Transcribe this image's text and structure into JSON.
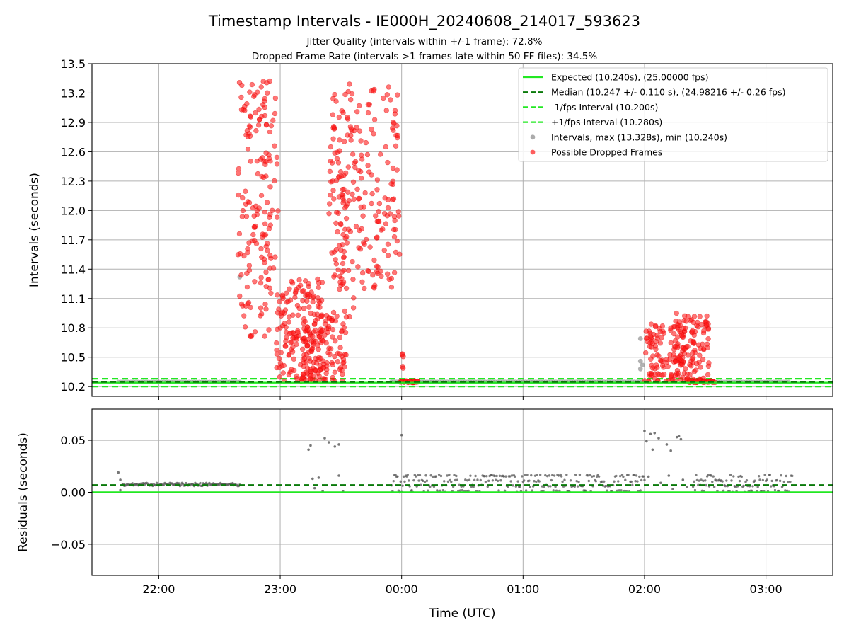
{
  "figure": {
    "title": "Timestamp Intervals - IE000H_20240608_214017_593623",
    "subtitle_1": "Jitter Quality (intervals within +/-1 frame): 72.8%",
    "subtitle_2": "Dropped Frame Rate (intervals >1 frames late within 50 FF files): 34.5%"
  },
  "colors": {
    "expected": "#22e822",
    "median": "#0a7a0a",
    "interval_band": "#22e822",
    "intervals": "#888888",
    "dropped": "#ff1a1a",
    "residuals": "#555555",
    "grid": "#b0b0b0"
  },
  "chart_data": [
    {
      "type": "scatter",
      "xlabel": "",
      "ylabel": "Intervals (seconds)",
      "xlim": [
        "21:27",
        "03:33"
      ],
      "ylim": [
        10.1,
        13.5
      ],
      "y_ticks": [
        "10.2",
        "10.5",
        "10.8",
        "11.1",
        "11.4",
        "11.7",
        "12.0",
        "12.3",
        "12.6",
        "12.9",
        "13.2",
        "13.5"
      ],
      "x_ticks": [
        "22:00",
        "23:00",
        "00:00",
        "01:00",
        "02:00",
        "03:00"
      ],
      "grid": true,
      "legend_position": "top-right",
      "reference_lines": [
        {
          "name": "Expected (10.240s), (25.00000 fps)",
          "y": 10.24,
          "style": "solid"
        },
        {
          "name": "Median (10.247 +/- 0.110 s), (24.98216 +/- 0.26 fps)",
          "y": 10.247,
          "style": "dashed"
        },
        {
          "name": "-1/fps Interval (10.200s)",
          "y": 10.2,
          "style": "dashed"
        },
        {
          "name": "+1/fps Interval (10.280s)",
          "y": 10.28,
          "style": "dashed"
        }
      ],
      "series": [
        {
          "name": "Intervals, max (13.328s), min (10.240s)",
          "max": 13.328,
          "min": 10.24,
          "baseline_ranges": [
            {
              "start": "21:40",
              "end": "22:40",
              "y": 10.247
            },
            {
              "start": "23:55",
              "end": "02:00",
              "y": 10.249
            },
            {
              "start": "02:35",
              "end": "03:12",
              "y": 10.247
            }
          ],
          "points": [
            {
              "x": "22:40",
              "y": 11.32
            },
            {
              "x": "01:58",
              "y": 10.69
            },
            {
              "x": "01:58",
              "y": 10.46
            },
            {
              "x": "01:58",
              "y": 10.38
            },
            {
              "x": "01:59",
              "y": 10.42
            }
          ]
        },
        {
          "name": "Possible Dropped Frames",
          "clusters": [
            {
              "start": "22:39",
              "end": "22:59",
              "ymin": 10.7,
              "ymax": 13.33,
              "count": 160
            },
            {
              "start": "22:58",
              "end": "23:21",
              "ymin": 10.25,
              "ymax": 11.3,
              "count": 170
            },
            {
              "start": "23:11",
              "end": "23:33",
              "ymin": 10.25,
              "ymax": 10.95,
              "count": 110
            },
            {
              "start": "23:24",
              "end": "23:37",
              "ymin": 10.8,
              "ymax": 12.9,
              "count": 55
            },
            {
              "start": "23:25",
              "end": "23:59",
              "ymin": 11.2,
              "ymax": 13.3,
              "count": 190
            },
            {
              "start": "23:59",
              "end": "00:08",
              "ymin": 10.24,
              "ymax": 10.26,
              "count": 45
            },
            {
              "start": "00:00",
              "end": "00:01",
              "ymin": 10.3,
              "ymax": 10.56,
              "count": 5
            },
            {
              "start": "02:00",
              "end": "02:20",
              "ymin": 10.25,
              "ymax": 10.84,
              "count": 110
            },
            {
              "start": "02:15",
              "end": "02:32",
              "ymin": 10.25,
              "ymax": 10.96,
              "count": 110
            },
            {
              "start": "02:22",
              "end": "02:35",
              "ymin": 10.24,
              "ymax": 10.26,
              "count": 50
            }
          ]
        }
      ]
    },
    {
      "type": "scatter",
      "xlabel": "Time (UTC)",
      "ylabel": "Residuals (seconds)",
      "xlim": [
        "21:27",
        "03:33"
      ],
      "ylim": [
        -0.08,
        0.08
      ],
      "y_ticks": [
        "0.05",
        "0.00",
        "−0.05"
      ],
      "x_ticks": [
        "22:00",
        "23:00",
        "00:00",
        "01:00",
        "02:00",
        "03:00"
      ],
      "grid": true,
      "reference_lines": [
        {
          "name": "Expected",
          "y": 0.0,
          "style": "solid"
        },
        {
          "name": "Median",
          "y": 0.007,
          "style": "dashed"
        }
      ],
      "series": [
        {
          "name": "Residuals",
          "bands": [
            {
              "start": "21:42",
              "end": "22:40",
              "values": [
                0.007,
                0.008
              ]
            },
            {
              "start": "23:55",
              "end": "02:00",
              "values": [
                0.001,
                0.006,
                0.011,
                0.016
              ]
            },
            {
              "start": "02:24",
              "end": "03:13",
              "values": [
                0.001,
                0.006,
                0.011,
                0.016
              ]
            }
          ],
          "points": [
            {
              "x": "21:40",
              "y": 0.019
            },
            {
              "x": "21:41",
              "y": 0.012
            },
            {
              "x": "21:41",
              "y": 0.002
            },
            {
              "x": "23:14",
              "y": 0.041
            },
            {
              "x": "23:15",
              "y": 0.045
            },
            {
              "x": "23:16",
              "y": 0.013
            },
            {
              "x": "23:17",
              "y": 0.004
            },
            {
              "x": "23:19",
              "y": 0.014
            },
            {
              "x": "23:21",
              "y": 0.001
            },
            {
              "x": "23:22",
              "y": 0.052
            },
            {
              "x": "23:24",
              "y": 0.048
            },
            {
              "x": "23:27",
              "y": 0.044
            },
            {
              "x": "23:29",
              "y": 0.046
            },
            {
              "x": "23:29",
              "y": 0.016
            },
            {
              "x": "23:31",
              "y": 0.001
            },
            {
              "x": "00:00",
              "y": 0.055
            },
            {
              "x": "02:00",
              "y": 0.059
            },
            {
              "x": "02:01",
              "y": 0.049
            },
            {
              "x": "02:03",
              "y": 0.056
            },
            {
              "x": "02:04",
              "y": 0.041
            },
            {
              "x": "02:05",
              "y": 0.057
            },
            {
              "x": "02:07",
              "y": 0.052
            },
            {
              "x": "02:11",
              "y": 0.046
            },
            {
              "x": "02:13",
              "y": 0.04
            },
            {
              "x": "02:16",
              "y": 0.053
            },
            {
              "x": "02:17",
              "y": 0.054
            },
            {
              "x": "02:18",
              "y": 0.051
            },
            {
              "x": "02:02",
              "y": 0.015
            },
            {
              "x": "02:08",
              "y": 0.009
            },
            {
              "x": "02:12",
              "y": 0.016
            },
            {
              "x": "02:14",
              "y": 0.003
            },
            {
              "x": "02:19",
              "y": 0.012
            },
            {
              "x": "02:21",
              "y": 0.005
            }
          ]
        }
      ]
    }
  ]
}
